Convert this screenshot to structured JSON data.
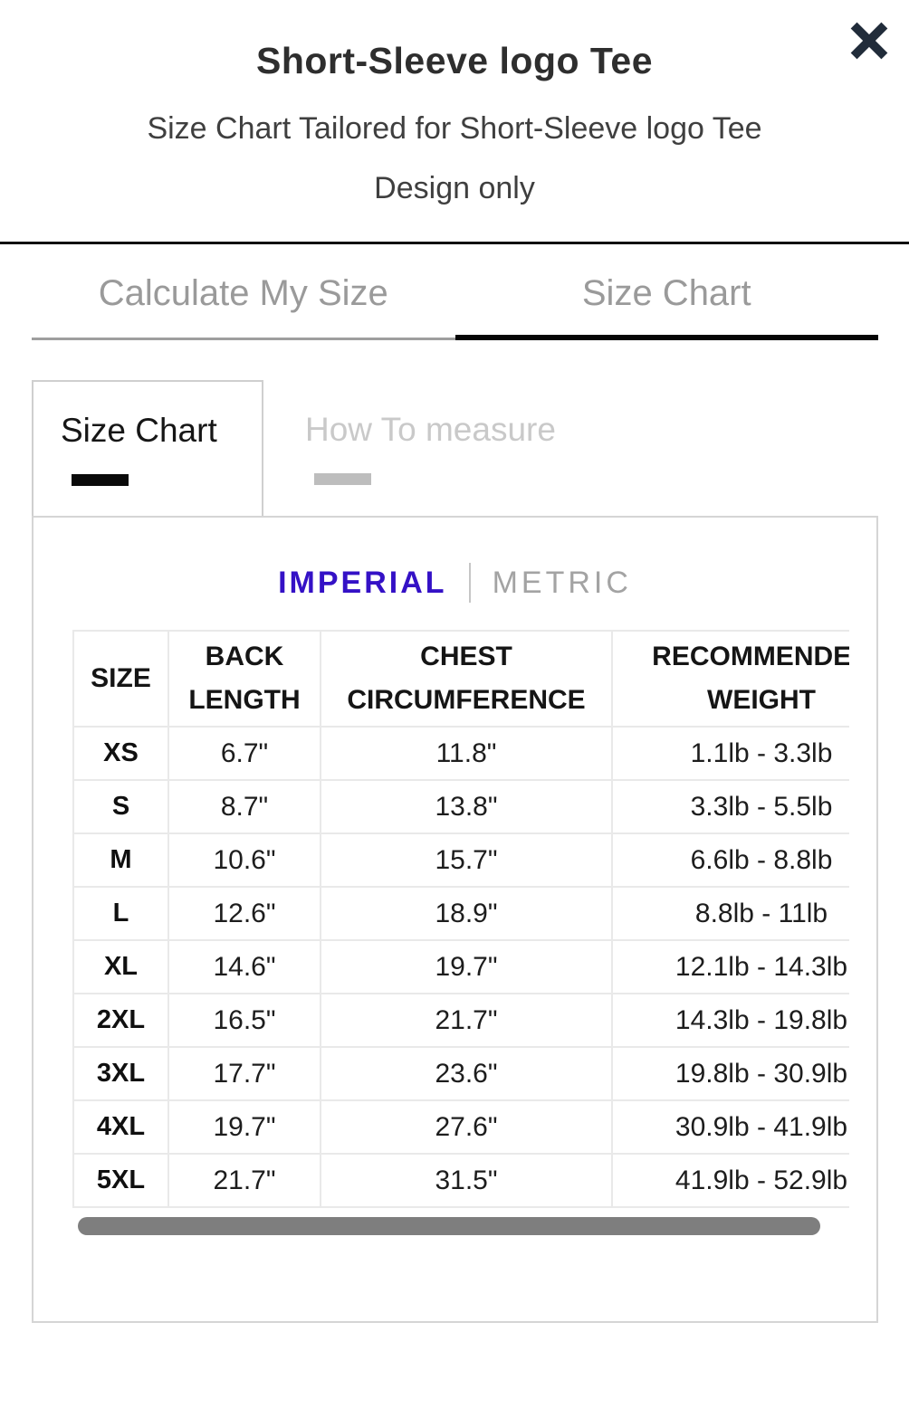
{
  "modal": {
    "title": "Short-Sleeve logo Tee",
    "subtitle": "Size Chart Tailored for Short-Sleeve logo Tee Design only",
    "close_icon": "x-icon"
  },
  "colors": {
    "accent_purple": "#3411c6",
    "close_icon": "#212c3a",
    "active_tab_underline": "#050505",
    "inactive_tab_underline": "#9e9e9e",
    "scrollbar_thumb": "#7e7e7e"
  },
  "main_tabs": [
    {
      "label": "Calculate My Size",
      "active": false
    },
    {
      "label": "Size Chart",
      "active": true
    }
  ],
  "sub_tabs": [
    {
      "label": "Size Chart",
      "active": true
    },
    {
      "label": "How To measure",
      "active": false
    }
  ],
  "unit_toggle": {
    "selected": "IMPERIAL",
    "options": [
      "IMPERIAL",
      "METRIC"
    ]
  },
  "size_table": {
    "type": "table",
    "columns": [
      "SIZE",
      "BACK LENGTH",
      "CHEST CIRCUMFERENCE",
      "RECOMMENDED WEIGHT"
    ],
    "rows": [
      [
        "XS",
        "6.7\"",
        "11.8\"",
        "1.1lb - 3.3lb"
      ],
      [
        "S",
        "8.7\"",
        "13.8\"",
        "3.3lb - 5.5lb"
      ],
      [
        "M",
        "10.6\"",
        "15.7\"",
        "6.6lb - 8.8lb"
      ],
      [
        "L",
        "12.6\"",
        "18.9\"",
        "8.8lb - 11lb"
      ],
      [
        "XL",
        "14.6\"",
        "19.7\"",
        "12.1lb - 14.3lb"
      ],
      [
        "2XL",
        "16.5\"",
        "21.7\"",
        "14.3lb - 19.8lb"
      ],
      [
        "3XL",
        "17.7\"",
        "23.6\"",
        "19.8lb - 30.9lb"
      ],
      [
        "4XL",
        "19.7\"",
        "27.6\"",
        "30.9lb - 41.9lb"
      ],
      [
        "5XL",
        "21.7\"",
        "31.5\"",
        "41.9lb - 52.9lb"
      ]
    ]
  }
}
